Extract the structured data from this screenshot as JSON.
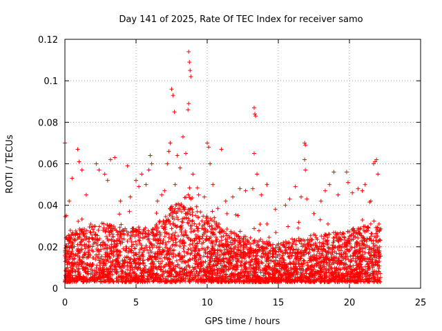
{
  "chart_data": {
    "type": "scatter",
    "title": "Day 141 of 2025, Rate Of TEC Index for receiver samo",
    "xlabel": "GPS time / hours",
    "ylabel": "ROTI / TECUs",
    "xlim": [
      0,
      25
    ],
    "ylim": [
      0,
      0.12
    ],
    "xticks": [
      "0",
      "5",
      "10",
      "15",
      "20",
      "25"
    ],
    "yticks": [
      "0",
      "0.02",
      "0.04",
      "0.06",
      "0.08",
      "0.1",
      "0.12"
    ],
    "grid": true,
    "marker_color": "#ff0000",
    "series": [
      {
        "points": [
          [
            0.0,
            0.07
          ],
          [
            0.1,
            0.035
          ],
          [
            0.3,
            0.042
          ],
          [
            0.5,
            0.053
          ],
          [
            0.9,
            0.067
          ],
          [
            1.0,
            0.061
          ],
          [
            1.2,
            0.057
          ],
          [
            1.5,
            0.045
          ],
          [
            2.2,
            0.06
          ],
          [
            2.4,
            0.057
          ],
          [
            2.8,
            0.055
          ],
          [
            3.0,
            0.052
          ],
          [
            3.2,
            0.062
          ],
          [
            3.5,
            0.063
          ],
          [
            3.9,
            0.042
          ],
          [
            4.4,
            0.059
          ],
          [
            4.6,
            0.044
          ],
          [
            5.0,
            0.052
          ],
          [
            5.2,
            0.049
          ],
          [
            5.4,
            0.055
          ],
          [
            5.7,
            0.05
          ],
          [
            5.9,
            0.057
          ],
          [
            6.0,
            0.064
          ],
          [
            6.1,
            0.06
          ],
          [
            6.5,
            0.042
          ],
          [
            6.8,
            0.045
          ],
          [
            7.0,
            0.047
          ],
          [
            7.2,
            0.06
          ],
          [
            7.3,
            0.066
          ],
          [
            7.4,
            0.07
          ],
          [
            7.5,
            0.096
          ],
          [
            7.6,
            0.093
          ],
          [
            7.7,
            0.085
          ],
          [
            7.9,
            0.064
          ],
          [
            8.1,
            0.058
          ],
          [
            8.3,
            0.073
          ],
          [
            8.5,
            0.065
          ],
          [
            8.7,
            0.114
          ],
          [
            8.75,
            0.109
          ],
          [
            8.8,
            0.105
          ],
          [
            8.85,
            0.102
          ],
          [
            8.7,
            0.089
          ],
          [
            8.65,
            0.086
          ],
          [
            9.0,
            0.055
          ],
          [
            9.4,
            0.045
          ],
          [
            9.8,
            0.044
          ],
          [
            10.0,
            0.07
          ],
          [
            10.1,
            0.068
          ],
          [
            10.2,
            0.06
          ],
          [
            10.4,
            0.05
          ],
          [
            11.0,
            0.067
          ],
          [
            11.3,
            0.042
          ],
          [
            11.8,
            0.044
          ],
          [
            12.3,
            0.048
          ],
          [
            12.7,
            0.047
          ],
          [
            13.2,
            0.048
          ],
          [
            13.3,
            0.087
          ],
          [
            13.35,
            0.084
          ],
          [
            13.4,
            0.083
          ],
          [
            13.3,
            0.065
          ],
          [
            13.5,
            0.055
          ],
          [
            13.8,
            0.045
          ],
          [
            14.2,
            0.05
          ],
          [
            14.8,
            0.038
          ],
          [
            15.5,
            0.04
          ],
          [
            15.8,
            0.043
          ],
          [
            16.2,
            0.049
          ],
          [
            16.6,
            0.044
          ],
          [
            16.85,
            0.07
          ],
          [
            16.9,
            0.069
          ],
          [
            16.85,
            0.062
          ],
          [
            16.9,
            0.057
          ],
          [
            17.0,
            0.043
          ],
          [
            17.5,
            0.036
          ],
          [
            18.0,
            0.042
          ],
          [
            18.3,
            0.047
          ],
          [
            18.6,
            0.05
          ],
          [
            18.9,
            0.056
          ],
          [
            19.2,
            0.045
          ],
          [
            19.8,
            0.056
          ],
          [
            19.9,
            0.051
          ],
          [
            20.2,
            0.046
          ],
          [
            20.6,
            0.048
          ],
          [
            20.9,
            0.047
          ],
          [
            21.1,
            0.05
          ],
          [
            21.5,
            0.042
          ],
          [
            21.7,
            0.06
          ],
          [
            21.8,
            0.061
          ],
          [
            21.9,
            0.062
          ],
          [
            22.0,
            0.055
          ]
        ],
        "background": {
          "x_range": [
            0,
            22.2
          ],
          "baseline_envelope": [
            [
              0,
              0.025
            ],
            [
              2,
              0.032
            ],
            [
              4,
              0.03
            ],
            [
              6,
              0.028
            ],
            [
              7.5,
              0.04
            ],
            [
              8.7,
              0.045
            ],
            [
              10,
              0.035
            ],
            [
              12,
              0.026
            ],
            [
              13.5,
              0.024
            ],
            [
              15,
              0.022
            ],
            [
              17,
              0.025
            ],
            [
              19,
              0.027
            ],
            [
              21,
              0.03
            ],
            [
              22.2,
              0.034
            ]
          ],
          "floor": 0.003
        }
      }
    ]
  }
}
